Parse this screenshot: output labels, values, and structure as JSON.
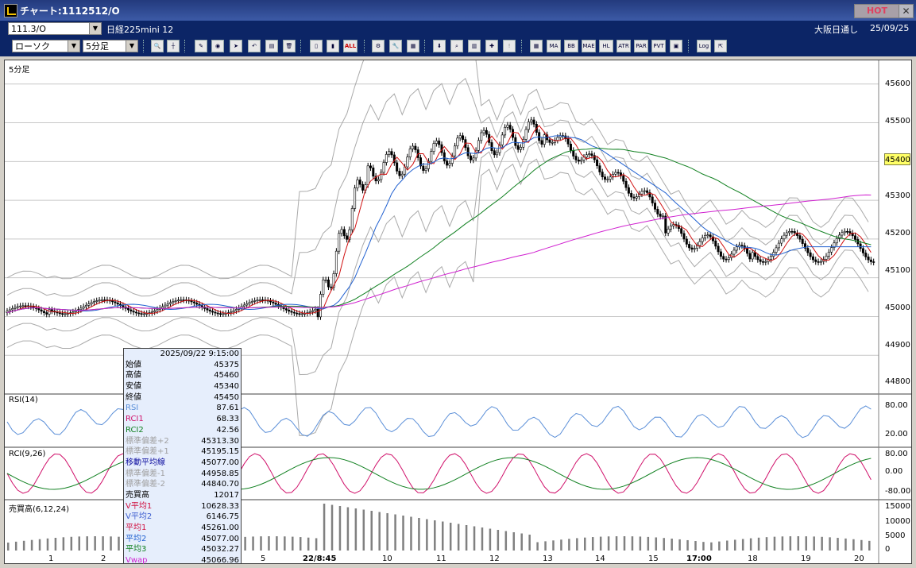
{
  "window": {
    "title": "チャート:1112512/O",
    "hot": "HOT",
    "close": "✕"
  },
  "info": {
    "code": "111.3/O",
    "name": "日経225mini 12",
    "market": "大阪日通し",
    "date": "25/09/25"
  },
  "controls": {
    "chart_type": "ローソク",
    "interval": "5分足"
  },
  "toolbar": {
    "buttons": [
      "ALL",
      "MA",
      "BB",
      "MAE",
      "HL",
      "ATR",
      "PAR",
      "PVT",
      "Log"
    ]
  },
  "panels": {
    "price": {
      "label": "5分足",
      "ticks": [
        "45600",
        "45500",
        "45400",
        "45300",
        "45200",
        "45100",
        "45000",
        "44900",
        "44800"
      ],
      "current": "45400"
    },
    "rsi": {
      "label": "RSI(14)",
      "ticks": [
        "80.00",
        "20.00"
      ]
    },
    "rci": {
      "label": "RCI(9,26)",
      "ticks": [
        "80.00",
        "0.00",
        "-80.00"
      ]
    },
    "volume": {
      "label": "売買高(6,12,24)",
      "ticks": [
        "15000",
        "10000",
        "5000",
        "0"
      ]
    }
  },
  "xaxis": {
    "labels": [
      "1",
      "2",
      "5",
      "22/8:45",
      "10",
      "11",
      "12",
      "13",
      "14",
      "15",
      "17:00",
      "18",
      "19",
      "20"
    ]
  },
  "databox": {
    "header": "2025/09/22 9:15:00",
    "rows": [
      {
        "label": "始値",
        "value": "45375",
        "color": "#000000"
      },
      {
        "label": "高値",
        "value": "45460",
        "color": "#000000"
      },
      {
        "label": "安値",
        "value": "45340",
        "color": "#000000"
      },
      {
        "label": "終値",
        "value": "45450",
        "color": "#000000"
      },
      {
        "label": "RSI",
        "value": "87.61",
        "color": "#5b8fd8"
      },
      {
        "label": "RCI1",
        "value": "68.33",
        "color": "#d0106a"
      },
      {
        "label": "RCI2",
        "value": "42.56",
        "color": "#108020"
      },
      {
        "label": "標準偏差+2",
        "value": "45313.30",
        "color": "#a0a0a0"
      },
      {
        "label": "標準偏差+1",
        "value": "45195.15",
        "color": "#a0a0a0"
      },
      {
        "label": "移動平均線",
        "value": "45077.00",
        "color": "#1010a0"
      },
      {
        "label": "標準偏差-1",
        "value": "44958.85",
        "color": "#a0a0a0"
      },
      {
        "label": "標準偏差-2",
        "value": "44840.70",
        "color": "#a0a0a0"
      },
      {
        "label": "売買高",
        "value": "12017",
        "color": "#000000"
      },
      {
        "label": "V平均1",
        "value": "10628.33",
        "color": "#d01040"
      },
      {
        "label": "V平均2",
        "value": "6146.75",
        "color": "#4060d0"
      },
      {
        "label": "平均1",
        "value": "45261.00",
        "color": "#d01040"
      },
      {
        "label": "平均2",
        "value": "45077.00",
        "color": "#2060d0"
      },
      {
        "label": "平均3",
        "value": "45032.27",
        "color": "#108020"
      },
      {
        "label": "Vwap",
        "value": "45066.96",
        "color": "#d020d0"
      }
    ]
  }
}
